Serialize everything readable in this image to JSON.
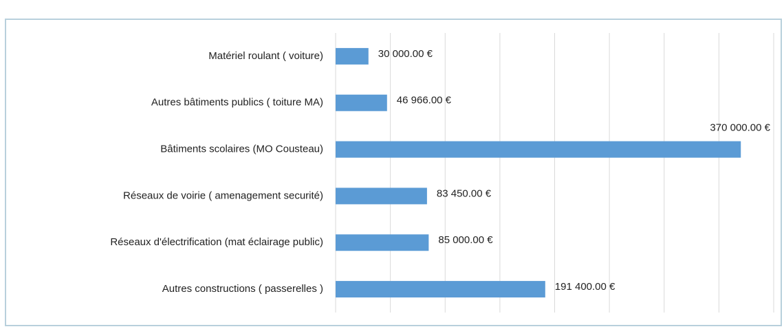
{
  "chart_data": {
    "type": "barh",
    "categories": [
      "Matériel roulant ( voiture)",
      "Autres bâtiments publics ( toiture MA)",
      "Bâtiments scolaires (MO Cousteau)",
      "Réseaux de voirie ( amenagement securité)",
      "Réseaux d'électrification (mat éclairage public)",
      "Autres constructions ( passerelles )"
    ],
    "values": [
      30000,
      46966,
      370000,
      83450,
      85000,
      191400
    ],
    "value_labels": [
      "30 000.00 €",
      "46 966.00 €",
      "370 000.00 €",
      "83 450.00 €",
      "85 000.00 €",
      "191 400.00 €"
    ],
    "color": "#5b9bd5",
    "xlim": [
      0,
      400000
    ],
    "xticks": [
      0,
      50000,
      100000,
      150000,
      200000,
      250000,
      300000,
      350000,
      400000
    ],
    "grid": true
  }
}
